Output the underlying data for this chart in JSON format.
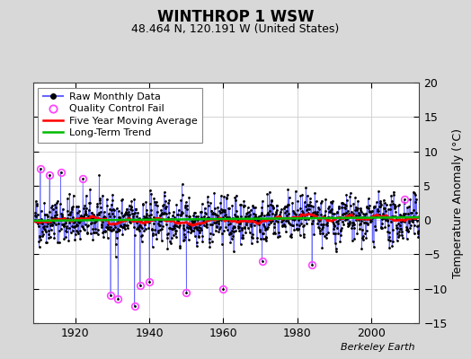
{
  "title": "WINTHROP 1 WSW",
  "subtitle": "48.464 N, 120.191 W (United States)",
  "ylabel": "Temperature Anomaly (°C)",
  "credit": "Berkeley Earth",
  "year_start": 1909,
  "year_end": 2012,
  "ylim": [
    -15,
    20
  ],
  "yticks": [
    -15,
    -10,
    -5,
    0,
    5,
    10,
    15,
    20
  ],
  "background_color": "#d8d8d8",
  "plot_bg_color": "#ffffff",
  "raw_line_color": "#6666ff",
  "raw_marker_color": "#000000",
  "moving_avg_color": "#ff0000",
  "trend_color": "#00bb00",
  "qc_fail_color": "#ff44ff",
  "seed": 42,
  "xticks": [
    1920,
    1940,
    1960,
    1980,
    2000
  ],
  "legend_fontsize": 8,
  "title_fontsize": 12,
  "subtitle_fontsize": 9,
  "tick_fontsize": 9,
  "ylabel_fontsize": 9
}
